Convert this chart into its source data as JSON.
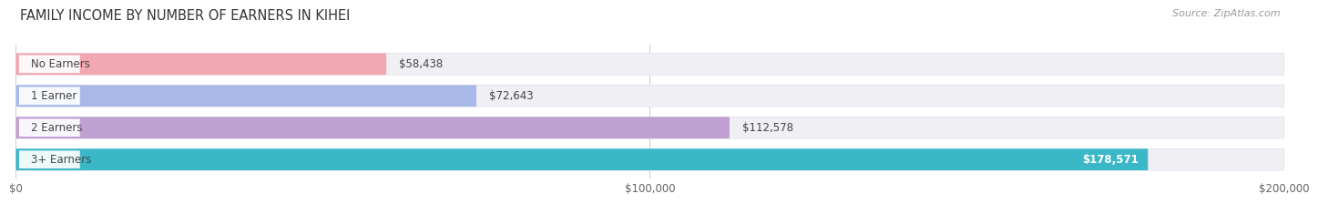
{
  "title": "FAMILY INCOME BY NUMBER OF EARNERS IN KIHEI",
  "source": "Source: ZipAtlas.com",
  "categories": [
    "No Earners",
    "1 Earner",
    "2 Earners",
    "3+ Earners"
  ],
  "values": [
    58438,
    72643,
    112578,
    178571
  ],
  "bar_colors": [
    "#f2a8b0",
    "#a8b8e8",
    "#c0a0d0",
    "#3ab8c8"
  ],
  "label_colors": [
    "#333333",
    "#333333",
    "#333333",
    "#ffffff"
  ],
  "value_labels": [
    "$58,438",
    "$72,643",
    "$112,578",
    "$178,571"
  ],
  "xlim": [
    0,
    200000
  ],
  "xticks": [
    0,
    100000,
    200000
  ],
  "xtick_labels": [
    "$0",
    "$100,000",
    "$200,000"
  ],
  "background_color": "#ffffff",
  "bar_bg_color": "#f0f0f4",
  "bar_border_color": "#ddddee",
  "title_fontsize": 10.5,
  "label_fontsize": 8.5,
  "value_fontsize": 8.5,
  "source_fontsize": 8
}
